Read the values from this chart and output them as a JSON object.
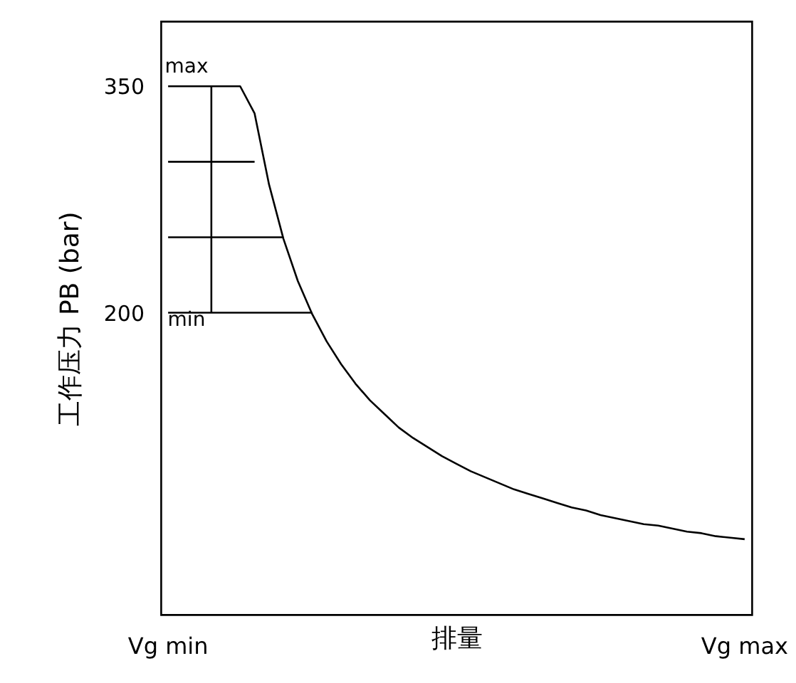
{
  "chart_data": {
    "type": "line",
    "xlabel": "排量",
    "ylabel": "工作压力 PB (bar)",
    "categories": [
      "Vg min",
      null,
      null,
      null,
      null,
      null,
      null,
      null,
      null,
      null,
      null,
      null,
      null,
      null,
      null,
      null,
      null,
      null,
      null,
      null,
      null,
      null,
      null,
      null,
      null,
      null,
      null,
      null,
      null,
      null,
      null,
      null,
      null,
      null,
      null,
      null,
      null,
      null,
      null,
      null,
      "Vg max"
    ],
    "ylim": [
      0,
      393
    ],
    "yticks": [
      200,
      350
    ],
    "grid": false,
    "marker": "none",
    "line_style": "solid",
    "series": [
      {
        "color": "#000000",
        "values": [
          350,
          350,
          350,
          350,
          350,
          350,
          332,
          285,
          249,
          221,
          199,
          181,
          166,
          153,
          142,
          133,
          124,
          117,
          111,
          105,
          100,
          95,
          91,
          87,
          83,
          80,
          77,
          74,
          71,
          69,
          66,
          64,
          62,
          60,
          59,
          57,
          55,
          54,
          52,
          51,
          50
        ]
      },
      {
        "color": "#000000",
        "values": [
          300,
          300,
          300,
          300,
          300,
          300,
          300,
          null,
          null,
          null,
          null,
          null,
          null,
          null,
          null,
          null,
          null,
          null,
          null,
          null,
          null,
          null,
          null,
          null,
          null,
          null,
          null,
          null,
          null,
          null,
          null,
          null,
          null,
          null,
          null,
          null,
          null,
          null,
          null,
          null,
          null
        ]
      },
      {
        "color": "#000000",
        "values": [
          250,
          250,
          250,
          250,
          250,
          250,
          250,
          250,
          250,
          null,
          null,
          null,
          null,
          null,
          null,
          null,
          null,
          null,
          null,
          null,
          null,
          null,
          null,
          null,
          null,
          null,
          null,
          null,
          null,
          null,
          null,
          null,
          null,
          null,
          null,
          null,
          null,
          null,
          null,
          null,
          null
        ]
      },
      {
        "color": "#000000",
        "values": [
          200,
          200,
          200,
          200,
          200,
          200,
          200,
          200,
          200,
          200,
          200,
          null,
          null,
          null,
          null,
          null,
          null,
          null,
          null,
          null,
          null,
          null,
          null,
          null,
          null,
          null,
          null,
          null,
          null,
          null,
          null,
          null,
          null,
          null,
          null,
          null,
          null,
          null,
          null,
          null,
          null
        ]
      },
      {
        "type": "bar",
        "color": "#000000",
        "values": [
          null,
          null,
          null,
          150,
          null,
          null,
          null,
          null,
          null,
          null,
          null,
          null,
          null,
          null,
          null,
          null,
          null,
          null,
          null,
          null,
          null,
          null,
          null,
          null,
          null,
          null,
          null,
          null,
          null,
          null,
          null,
          null,
          null,
          null,
          null,
          null,
          null,
          null,
          null,
          null,
          null
        ],
        "base": [
          null,
          null,
          null,
          200,
          null,
          null,
          null,
          null,
          null,
          null,
          null,
          null,
          null,
          null,
          null,
          null,
          null,
          null,
          null,
          null,
          null,
          null,
          null,
          null,
          null,
          null,
          null,
          null,
          null,
          null,
          null,
          null,
          null,
          null,
          null,
          null,
          null,
          null,
          null,
          null,
          null
        ]
      }
    ],
    "annotations": [
      "max",
      "min"
    ]
  }
}
